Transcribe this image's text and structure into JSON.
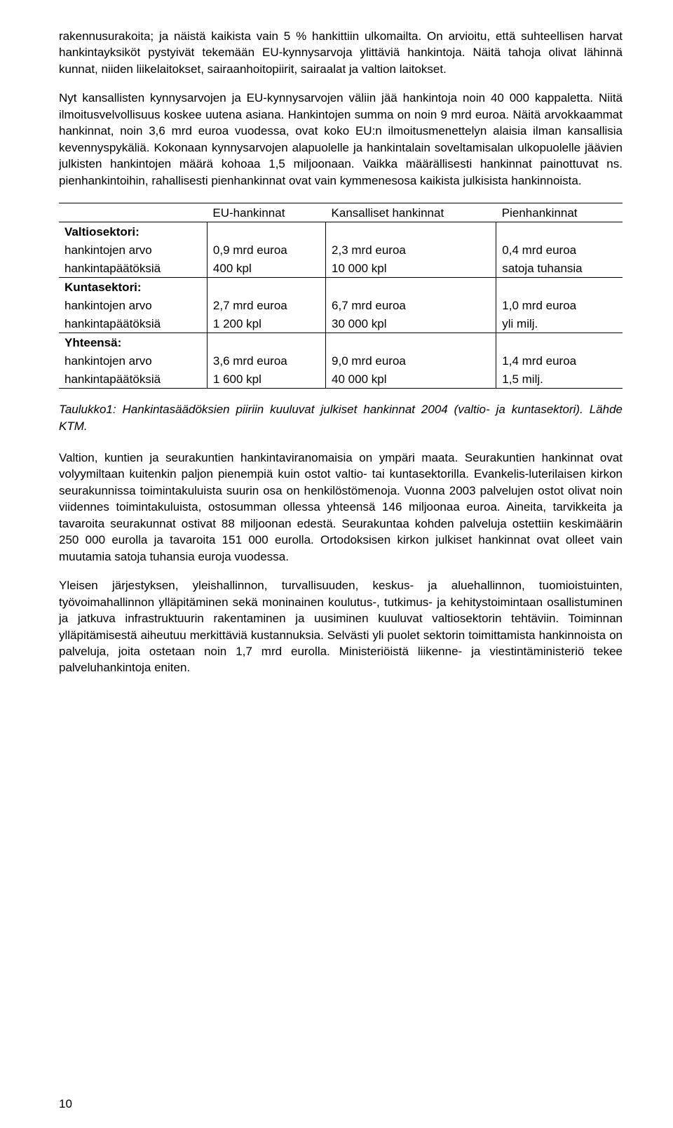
{
  "paragraphs": {
    "p1": "rakennusurakoita; ja näistä kaikista vain 5 % hankittiin ulkomailta. On arvioitu, että suhteellisen harvat hankintayksiköt pystyivät tekemään EU-kynnysarvoja ylittäviä hankintoja. Näitä tahoja olivat lähinnä kunnat, niiden liikelaitokset, sairaanhoitopiirit, sairaalat ja valtion laitokset.",
    "p2": "Nyt kansallisten kynnysarvojen ja EU-kynnysarvojen väliin jää hankintoja noin 40 000 kappaletta. Niitä ilmoitusvelvollisuus koskee uutena asiana. Hankintojen summa on noin 9 mrd euroa. Näitä arvokkaammat hankinnat, noin 3,6 mrd euroa vuodessa, ovat koko EU:n ilmoitusmenettelyn alaisia ilman kansallisia kevennyspykäliä. Kokonaan kynnysarvojen alapuolelle ja hankintalain soveltamisalan ulkopuolelle jäävien julkisten hankintojen määrä kohoaa 1,5 miljoonaan. Vaikka määrällisesti hankinnat painottuvat ns. pienhankintoihin, rahallisesti pienhankinnat ovat vain kymmenesosa kaikista julkisista hankinnoista.",
    "p3": "Valtion, kuntien ja seurakuntien hankintaviranomaisia on ympäri maata. Seurakuntien hankinnat ovat volyymiltaan kuitenkin paljon pienempiä kuin ostot valtio- tai kuntasektorilla. Evankelis-luterilaisen kirkon seurakunnissa toimintakuluista suurin osa on henkilöstömenoja. Vuonna 2003 palvelujen ostot olivat noin viidennes toimintakuluista, ostosumman ollessa yhteensä 146 miljoonaa euroa. Aineita, tarvikkeita ja tavaroita seurakunnat ostivat 88 miljoonan edestä. Seurakuntaa kohden palveluja ostettiin keskimäärin 250 000 eurolla ja tavaroita 151 000 eurolla. Ortodoksisen kirkon julkiset hankinnat ovat olleet vain muutamia satoja tuhansia euroja vuodessa.",
    "p4": "Yleisen järjestyksen, yleishallinnon, turvallisuuden, keskus- ja aluehallinnon, tuomioistuinten, työvoimahallinnon ylläpitäminen sekä moninainen koulutus-, tutkimus- ja kehitystoimintaan osallistuminen ja jatkuva infrastruktuurin rakentaminen ja uusiminen kuuluvat valtiosektorin tehtäviin. Toiminnan ylläpitämisestä aiheutuu merkittäviä kustannuksia. Selvästi yli puolet sektorin toimittamista hankinnoista on palveluja, joita ostetaan noin 1,7 mrd eurolla. Ministeriöistä liikenne- ja viestintäministeriö tekee palveluhankintoja eniten."
  },
  "caption": "Taulukko1: Hankintasäädöksien piiriin kuuluvat julkiset hankinnat 2004 (valtio- ja kuntasektori). Lähde KTM.",
  "table": {
    "headers": {
      "c1": "EU-hankinnat",
      "c2": "Kansalliset hankinnat",
      "c3": "Pienhankinnat"
    },
    "rows": {
      "valtioHeader": "Valtiosektori:",
      "valtioArvoLabel": "hankintojen arvo",
      "valtioArvo": {
        "c1": "0,9 mrd euroa",
        "c2": "2,3 mrd euroa",
        "c3": "0,4 mrd euroa"
      },
      "valtioPaatLabel": "hankintapäätöksiä",
      "valtioPaat": {
        "c1": "400 kpl",
        "c2": "10 000 kpl",
        "c3": "satoja tuhansia"
      },
      "kuntaHeader": "Kuntasektori:",
      "kuntaArvoLabel": "hankintojen arvo",
      "kuntaArvo": {
        "c1": "2,7 mrd euroa",
        "c2": "6,7 mrd euroa",
        "c3": "1,0 mrd euroa"
      },
      "kuntaPaatLabel": "hankintapäätöksiä",
      "kuntaPaat": {
        "c1": "1 200 kpl",
        "c2": "30 000 kpl",
        "c3": "yli milj."
      },
      "yhtHeader": "Yhteensä:",
      "yhtArvoLabel": "hankintojen arvo",
      "yhtArvo": {
        "c1": "3,6 mrd euroa",
        "c2": "9,0 mrd euroa",
        "c3": "1,4 mrd euroa"
      },
      "yhtPaatLabel": "hankintapäätöksiä",
      "yhtPaat": {
        "c1": "1 600 kpl",
        "c2": "40 000 kpl",
        "c3": "1,5 milj."
      }
    }
  },
  "pageNumber": "10"
}
